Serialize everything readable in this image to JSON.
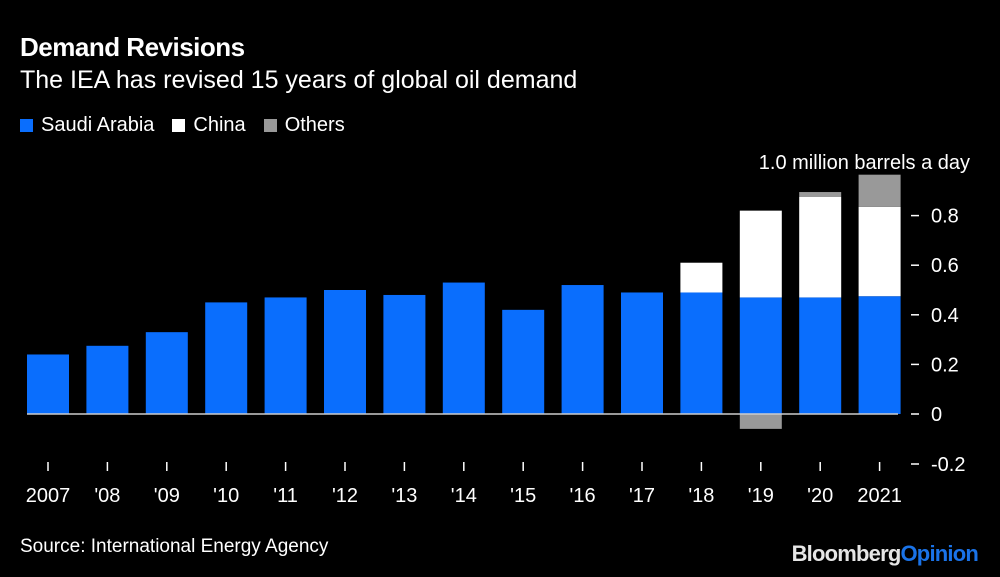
{
  "header": {
    "title": "Demand Revisions",
    "subtitle": "The IEA has revised 15 years of global oil demand"
  },
  "legend": [
    {
      "label": "Saudi Arabia",
      "color": "#0a6efd"
    },
    {
      "label": "China",
      "color": "#ffffff"
    },
    {
      "label": "Others",
      "color": "#999999"
    }
  ],
  "footer": {
    "source": "Source: International Energy Agency",
    "brand_part1": "Bloomberg",
    "brand_part2": "Opinion"
  },
  "chart_data": {
    "type": "bar",
    "stacked": true,
    "title": "Demand Revisions",
    "subtitle": "The IEA has revised 15 years of global oil demand",
    "unit_label": "1.0 million barrels a day",
    "xlabel": "",
    "ylabel": "",
    "categories": [
      "2007",
      "'08",
      "'09",
      "'10",
      "'11",
      "'12",
      "'13",
      "'14",
      "'15",
      "'16",
      "'17",
      "'18",
      "'19",
      "'20",
      "2021"
    ],
    "series": [
      {
        "name": "Saudi Arabia",
        "color": "#0a6efd",
        "values": [
          0.24,
          0.275,
          0.33,
          0.45,
          0.47,
          0.5,
          0.48,
          0.53,
          0.42,
          0.52,
          0.49,
          0.49,
          0.47,
          0.47,
          0.475
        ]
      },
      {
        "name": "China",
        "color": "#ffffff",
        "values": [
          0,
          0,
          0,
          0,
          0,
          0,
          0,
          0,
          0,
          0,
          0,
          0.12,
          0.35,
          0.405,
          0.36
        ]
      },
      {
        "name": "Others",
        "color": "#999999",
        "values": [
          0,
          0,
          0,
          0,
          0,
          0,
          0,
          0,
          0,
          0,
          0,
          0,
          -0.06,
          0.02,
          0.13
        ]
      }
    ],
    "yticks": [
      -0.2,
      0,
      0.2,
      0.4,
      0.6,
      0.8
    ],
    "ytick_labels": [
      "-0.2",
      "0",
      "0.2",
      "0.4",
      "0.6",
      "0.8"
    ],
    "ylim": [
      -0.2,
      1.0
    ],
    "y_axis_side": "right",
    "legend_position": "top-left",
    "grid": false
  }
}
